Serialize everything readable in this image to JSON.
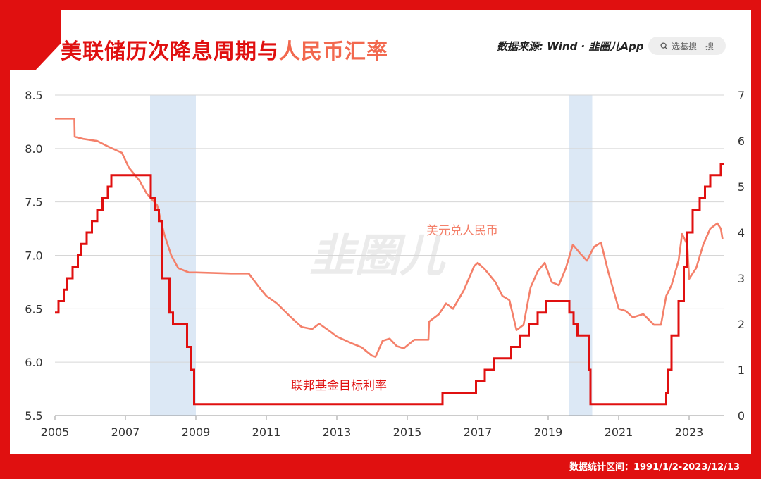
{
  "header": {
    "title_main": "美联储历次降息周期与",
    "title_highlight": "人民币汇率",
    "source_prefix": "数据来源: Wind · ",
    "source_brand": "韭圈儿App",
    "search_placeholder": "选基搜一搜",
    "search_icon": "search-icon"
  },
  "footer": {
    "text": "数据统计区间：1991/1/2-2023/12/13"
  },
  "watermark": "韭圈儿",
  "colors": {
    "frame": "#e01010",
    "usdcny": "#f4806a",
    "fedfunds": "#e01010",
    "shade": "#dce8f5",
    "title_highlight": "#f2684e"
  },
  "chart_data": {
    "type": "line",
    "x_ticks": [
      "2005",
      "2007",
      "2009",
      "2011",
      "2013",
      "2015",
      "2017",
      "2019",
      "2021",
      "2023"
    ],
    "xlim": [
      2005.0,
      2024.0
    ],
    "y_left": {
      "ticks": [
        "8.5",
        "8.0",
        "7.5",
        "7.0",
        "6.5",
        "6.0",
        "5.5"
      ],
      "range": [
        5.5,
        8.5
      ]
    },
    "y_right": {
      "ticks": [
        "7",
        "6",
        "5",
        "4",
        "3",
        "2",
        "1",
        "0"
      ],
      "range": [
        0,
        7
      ]
    },
    "grid": true,
    "shaded_periods": [
      [
        2007.7,
        2009.0
      ],
      [
        2019.6,
        2020.25
      ]
    ],
    "series": [
      {
        "name": "美元兑人民币",
        "axis": "left",
        "points": [
          [
            2005.0,
            8.28
          ],
          [
            2005.55,
            8.28
          ],
          [
            2005.56,
            8.11
          ],
          [
            2005.8,
            8.09
          ],
          [
            2006.2,
            8.07
          ],
          [
            2006.5,
            8.02
          ],
          [
            2006.9,
            7.96
          ],
          [
            2007.1,
            7.82
          ],
          [
            2007.4,
            7.7
          ],
          [
            2007.6,
            7.58
          ],
          [
            2007.9,
            7.47
          ],
          [
            2008.1,
            7.2
          ],
          [
            2008.3,
            7.0
          ],
          [
            2008.5,
            6.88
          ],
          [
            2008.8,
            6.84
          ],
          [
            2009.0,
            6.84
          ],
          [
            2010.0,
            6.83
          ],
          [
            2010.5,
            6.83
          ],
          [
            2010.8,
            6.7
          ],
          [
            2011.0,
            6.62
          ],
          [
            2011.3,
            6.55
          ],
          [
            2011.7,
            6.42
          ],
          [
            2012.0,
            6.33
          ],
          [
            2012.3,
            6.31
          ],
          [
            2012.5,
            6.36
          ],
          [
            2012.8,
            6.29
          ],
          [
            2013.0,
            6.24
          ],
          [
            2013.4,
            6.18
          ],
          [
            2013.7,
            6.14
          ],
          [
            2014.0,
            6.06
          ],
          [
            2014.1,
            6.05
          ],
          [
            2014.3,
            6.2
          ],
          [
            2014.5,
            6.22
          ],
          [
            2014.7,
            6.15
          ],
          [
            2014.9,
            6.13
          ],
          [
            2015.2,
            6.21
          ],
          [
            2015.6,
            6.21
          ],
          [
            2015.62,
            6.38
          ],
          [
            2015.9,
            6.45
          ],
          [
            2016.1,
            6.55
          ],
          [
            2016.3,
            6.5
          ],
          [
            2016.6,
            6.67
          ],
          [
            2016.9,
            6.9
          ],
          [
            2017.0,
            6.93
          ],
          [
            2017.2,
            6.87
          ],
          [
            2017.5,
            6.75
          ],
          [
            2017.7,
            6.62
          ],
          [
            2017.9,
            6.58
          ],
          [
            2018.1,
            6.3
          ],
          [
            2018.3,
            6.35
          ],
          [
            2018.5,
            6.7
          ],
          [
            2018.7,
            6.85
          ],
          [
            2018.9,
            6.93
          ],
          [
            2019.1,
            6.75
          ],
          [
            2019.3,
            6.72
          ],
          [
            2019.5,
            6.88
          ],
          [
            2019.7,
            7.1
          ],
          [
            2019.9,
            7.02
          ],
          [
            2020.1,
            6.95
          ],
          [
            2020.3,
            7.08
          ],
          [
            2020.5,
            7.12
          ],
          [
            2020.7,
            6.85
          ],
          [
            2021.0,
            6.5
          ],
          [
            2021.2,
            6.48
          ],
          [
            2021.4,
            6.42
          ],
          [
            2021.7,
            6.45
          ],
          [
            2022.0,
            6.35
          ],
          [
            2022.2,
            6.35
          ],
          [
            2022.35,
            6.62
          ],
          [
            2022.5,
            6.72
          ],
          [
            2022.7,
            6.95
          ],
          [
            2022.8,
            7.2
          ],
          [
            2022.95,
            7.1
          ],
          [
            2023.0,
            6.78
          ],
          [
            2023.2,
            6.88
          ],
          [
            2023.4,
            7.1
          ],
          [
            2023.6,
            7.25
          ],
          [
            2023.8,
            7.3
          ],
          [
            2023.9,
            7.25
          ],
          [
            2023.95,
            7.15
          ]
        ]
      },
      {
        "name": "联邦基金目标利率",
        "axis": "right",
        "points": [
          [
            2005.0,
            2.25
          ],
          [
            2005.1,
            2.5
          ],
          [
            2005.25,
            2.75
          ],
          [
            2005.35,
            3.0
          ],
          [
            2005.5,
            3.25
          ],
          [
            2005.65,
            3.5
          ],
          [
            2005.75,
            3.75
          ],
          [
            2005.9,
            4.0
          ],
          [
            2006.05,
            4.25
          ],
          [
            2006.2,
            4.5
          ],
          [
            2006.35,
            4.75
          ],
          [
            2006.5,
            5.0
          ],
          [
            2006.6,
            5.25
          ],
          [
            2007.7,
            5.25
          ],
          [
            2007.72,
            4.75
          ],
          [
            2007.85,
            4.5
          ],
          [
            2007.95,
            4.25
          ],
          [
            2008.05,
            3.0
          ],
          [
            2008.25,
            2.25
          ],
          [
            2008.35,
            2.0
          ],
          [
            2008.75,
            1.5
          ],
          [
            2008.85,
            1.0
          ],
          [
            2008.95,
            0.25
          ],
          [
            2015.95,
            0.25
          ],
          [
            2016.0,
            0.5
          ],
          [
            2016.95,
            0.75
          ],
          [
            2017.2,
            1.0
          ],
          [
            2017.45,
            1.25
          ],
          [
            2017.95,
            1.5
          ],
          [
            2018.2,
            1.75
          ],
          [
            2018.45,
            2.0
          ],
          [
            2018.7,
            2.25
          ],
          [
            2018.95,
            2.5
          ],
          [
            2019.55,
            2.5
          ],
          [
            2019.6,
            2.25
          ],
          [
            2019.72,
            2.0
          ],
          [
            2019.83,
            1.75
          ],
          [
            2020.17,
            1.0
          ],
          [
            2020.2,
            0.25
          ],
          [
            2022.2,
            0.25
          ],
          [
            2022.35,
            0.5
          ],
          [
            2022.4,
            1.0
          ],
          [
            2022.5,
            1.75
          ],
          [
            2022.7,
            2.5
          ],
          [
            2022.85,
            3.25
          ],
          [
            2022.95,
            4.0
          ],
          [
            2023.1,
            4.5
          ],
          [
            2023.3,
            4.75
          ],
          [
            2023.45,
            5.0
          ],
          [
            2023.6,
            5.25
          ],
          [
            2023.9,
            5.5
          ],
          [
            2024.0,
            5.5
          ]
        ]
      }
    ]
  }
}
